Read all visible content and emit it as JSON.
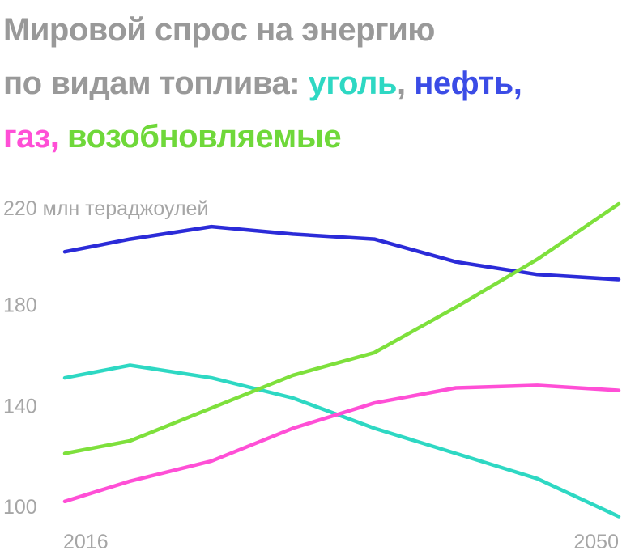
{
  "title": {
    "prefix_line1": "Мировой спрос на энергию",
    "prefix_line2": "по видам топлива: ",
    "series_coal": "уголь",
    "sep1": ", ",
    "series_oil": "нефть",
    "sep2": ",",
    "series_gas": "газ",
    "sep3": ", ",
    "series_renewables": "возобновляемые"
  },
  "colors": {
    "title_gray": "#999999",
    "coal": "#2ed8c3",
    "oil": "#2b2bd8",
    "gas": "#ff4fd6",
    "renewables": "#7ee03c",
    "axis_text": "#a6a6a6"
  },
  "chart_data": {
    "type": "line",
    "x": [
      2016,
      2020,
      2025,
      2030,
      2035,
      2040,
      2045,
      2050
    ],
    "y_unit_label": "220 млн тераджоулей",
    "y_ticks": [
      100,
      140,
      180
    ],
    "x_tick_labels": [
      "2016",
      "2050"
    ],
    "ylim": [
      100,
      220
    ],
    "series": [
      {
        "name": "нефть",
        "color": "#2b2bd8",
        "values": [
          201,
          206,
          211,
          208,
          206,
          197,
          192,
          190
        ]
      },
      {
        "name": "уголь",
        "color": "#2ed8c3",
        "values": [
          151,
          156,
          151,
          143,
          131,
          121,
          111,
          96
        ]
      },
      {
        "name": "газ",
        "color": "#ff4fd6",
        "values": [
          102,
          110,
          118,
          131,
          141,
          147,
          148,
          146
        ]
      },
      {
        "name": "возобновляемые",
        "color": "#7ee03c",
        "values": [
          121,
          126,
          139,
          152,
          161,
          179,
          198,
          220
        ]
      }
    ],
    "grid": false
  }
}
